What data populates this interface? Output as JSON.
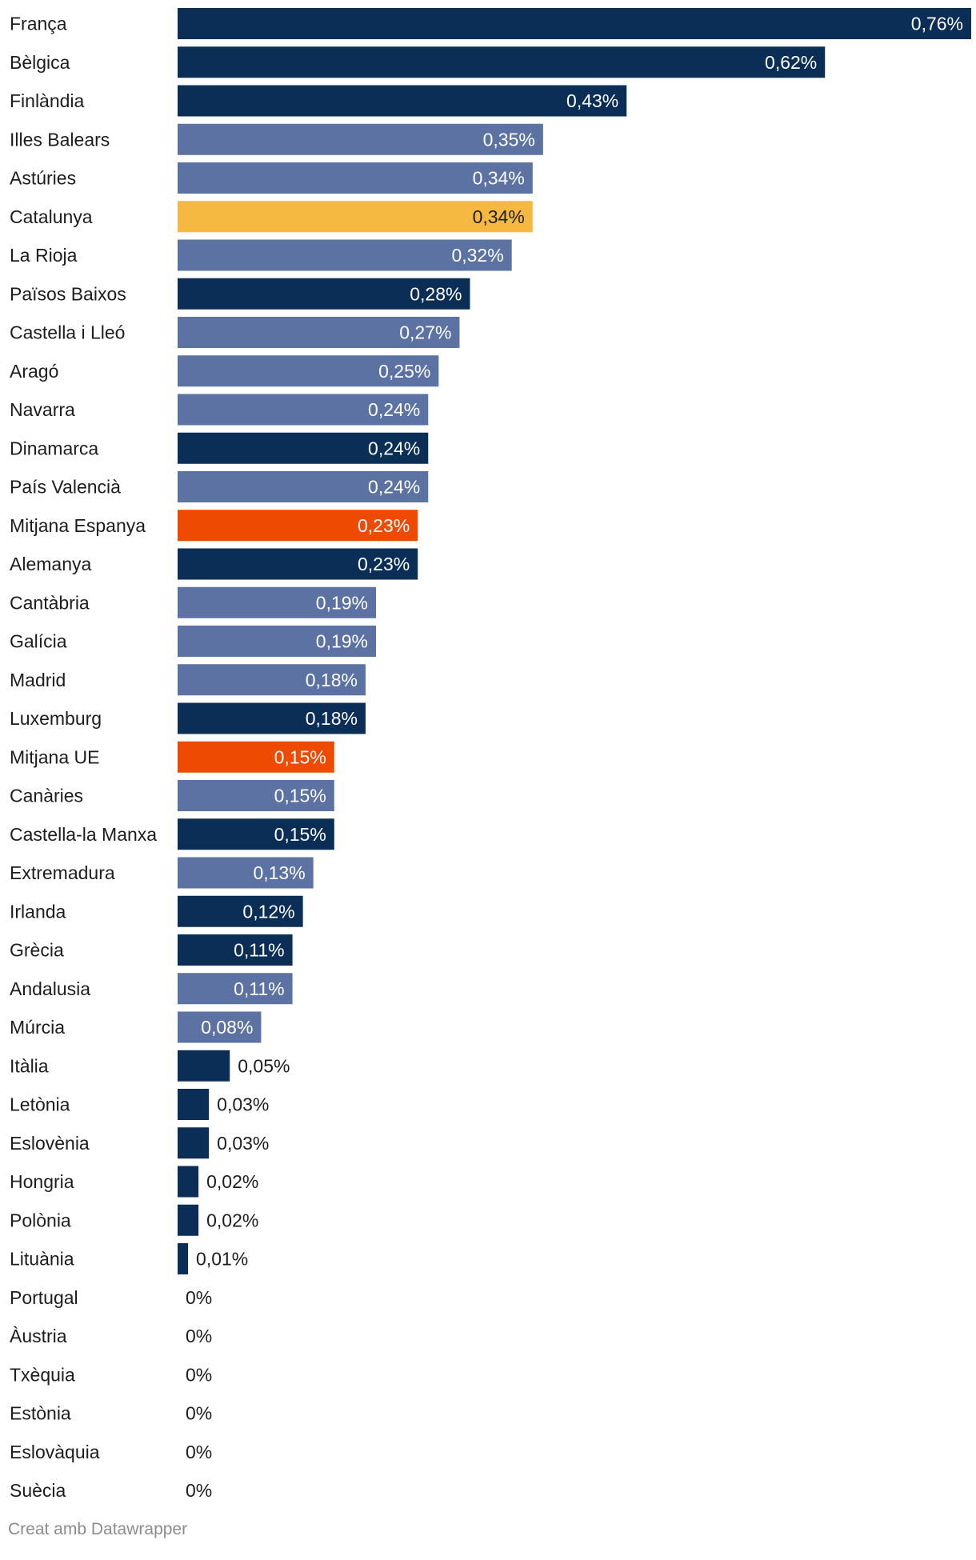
{
  "chart_data": {
    "type": "bar",
    "orientation": "horizontal",
    "title": "",
    "xlabel": "",
    "ylabel": "",
    "xlim": [
      0,
      0.76
    ],
    "grid": false,
    "unit_suffix": "%",
    "categories": [
      "França",
      "Bèlgica",
      "Finlàndia",
      "Illes Balears",
      "Astúries",
      "Catalunya",
      "La Rioja",
      "Països Baixos",
      "Castella i Lleó",
      "Aragó",
      "Navarra",
      "Dinamarca",
      "País Valencià",
      "Mitjana Espanya",
      "Alemanya",
      "Cantàbria",
      "Galícia",
      "Madrid",
      "Luxemburg",
      "Mitjana UE",
      "Canàries",
      "Castella-la Manxa",
      "Extremadura",
      "Irlanda",
      "Grècia",
      "Andalusia",
      "Múrcia",
      "Itàlia",
      "Letònia",
      "Eslovènia",
      "Hongria",
      "Polònia",
      "Lituània",
      "Portugal",
      "Àustria",
      "Txèquia",
      "Estònia",
      "Eslovàquia",
      "Suècia"
    ],
    "values": [
      0.76,
      0.62,
      0.43,
      0.35,
      0.34,
      0.34,
      0.32,
      0.28,
      0.27,
      0.25,
      0.24,
      0.24,
      0.24,
      0.23,
      0.23,
      0.19,
      0.19,
      0.18,
      0.18,
      0.15,
      0.15,
      0.15,
      0.13,
      0.12,
      0.11,
      0.11,
      0.08,
      0.05,
      0.03,
      0.03,
      0.02,
      0.02,
      0.01,
      0,
      0,
      0,
      0,
      0,
      0
    ],
    "value_labels": [
      "0,76%",
      "0,62%",
      "0,43%",
      "0,35%",
      "0,34%",
      "0,34%",
      "0,32%",
      "0,28%",
      "0,27%",
      "0,25%",
      "0,24%",
      "0,24%",
      "0,24%",
      "0,23%",
      "0,23%",
      "0,19%",
      "0,19%",
      "0,18%",
      "0,18%",
      "0,15%",
      "0,15%",
      "0,15%",
      "0,13%",
      "0,12%",
      "0,11%",
      "0,11%",
      "0,08%",
      "0,05%",
      "0,03%",
      "0,03%",
      "0,02%",
      "0,02%",
      "0,01%",
      "0%",
      "0%",
      "0%",
      "0%",
      "0%",
      "0%"
    ],
    "groups": [
      "country",
      "country",
      "country",
      "region",
      "region",
      "catalonia",
      "region",
      "country",
      "region",
      "region",
      "region",
      "country",
      "region",
      "average",
      "country",
      "region",
      "region",
      "region",
      "country",
      "average",
      "region",
      "country",
      "region",
      "country",
      "country",
      "region",
      "region",
      "country",
      "country",
      "country",
      "country",
      "country",
      "country",
      "country",
      "country",
      "country",
      "country",
      "country",
      "country"
    ],
    "colors": {
      "country": "#0b2e57",
      "region": "#5b72a2",
      "catalonia": "#f5b942",
      "average": "#ee4a02",
      "label_inside": "#ffffff",
      "label_inside_catalonia": "#1d1d1d",
      "label_outside": "#1d1d1d"
    }
  },
  "footer": {
    "credit": "Creat amb Datawrapper"
  }
}
